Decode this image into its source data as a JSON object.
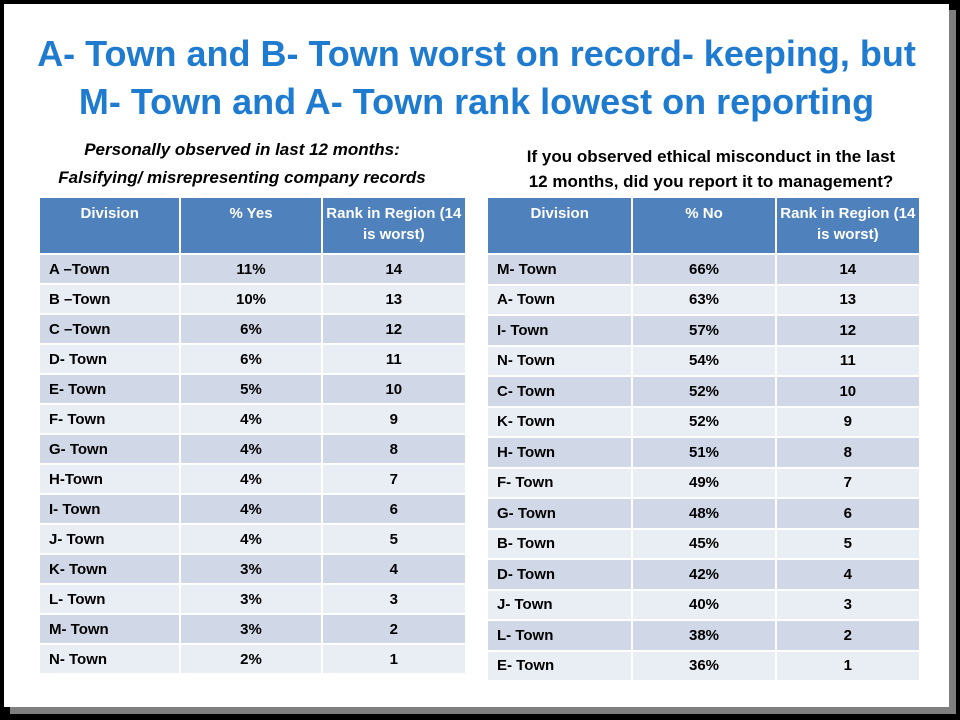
{
  "title": {
    "line1": "A- Town and B- Town worst on record- keeping, but",
    "line2": "M- Town and A- Town rank lowest on reporting"
  },
  "left": {
    "subtitle_line1": "Personally observed  in last 12 months:",
    "subtitle_line2": "Falsifying/  misrepresenting  company records",
    "headers": [
      "Division",
      "% Yes",
      "Rank in Region (14 is worst)"
    ],
    "rows": [
      [
        "A –Town",
        "11%",
        "14"
      ],
      [
        "B –Town",
        "10%",
        "13"
      ],
      [
        "C –Town",
        "6%",
        "12"
      ],
      [
        "D- Town",
        "6%",
        "11"
      ],
      [
        "E- Town",
        "5%",
        "10"
      ],
      [
        "F- Town",
        "4%",
        "9"
      ],
      [
        "G- Town",
        "4%",
        "8"
      ],
      [
        "H-Town",
        "4%",
        "7"
      ],
      [
        "I- Town",
        "4%",
        "6"
      ],
      [
        "J- Town",
        "4%",
        "5"
      ],
      [
        "K- Town",
        "3%",
        "4"
      ],
      [
        "L- Town",
        "3%",
        "3"
      ],
      [
        "M- Town",
        "3%",
        "2"
      ],
      [
        "N- Town",
        "2%",
        "1"
      ]
    ]
  },
  "right": {
    "subtitle_line1": "If you observed ethical misconduct in the last",
    "subtitle_line2": "12 months,  did you report it to management?",
    "headers": [
      "Division",
      "% No",
      "Rank in Region (14 is worst)"
    ],
    "rows": [
      [
        "M- Town",
        "66%",
        "14"
      ],
      [
        "A- Town",
        "63%",
        "13"
      ],
      [
        "I- Town",
        "57%",
        "12"
      ],
      [
        "N- Town",
        "54%",
        "11"
      ],
      [
        "C- Town",
        "52%",
        "10"
      ],
      [
        "K- Town",
        "52%",
        "9"
      ],
      [
        "H- Town",
        "51%",
        "8"
      ],
      [
        "F- Town",
        "49%",
        "7"
      ],
      [
        "G- Town",
        "48%",
        "6"
      ],
      [
        "B- Town",
        "45%",
        "5"
      ],
      [
        "D- Town",
        "42%",
        "4"
      ],
      [
        "J- Town",
        "40%",
        "3"
      ],
      [
        "L- Town",
        "38%",
        "2"
      ],
      [
        "E- Town",
        "36%",
        "1"
      ]
    ]
  },
  "colors": {
    "title": "#1f7bd0",
    "header_bg": "#4f81bd",
    "row_odd": "#d0d8e8",
    "row_even": "#e9edf4"
  }
}
